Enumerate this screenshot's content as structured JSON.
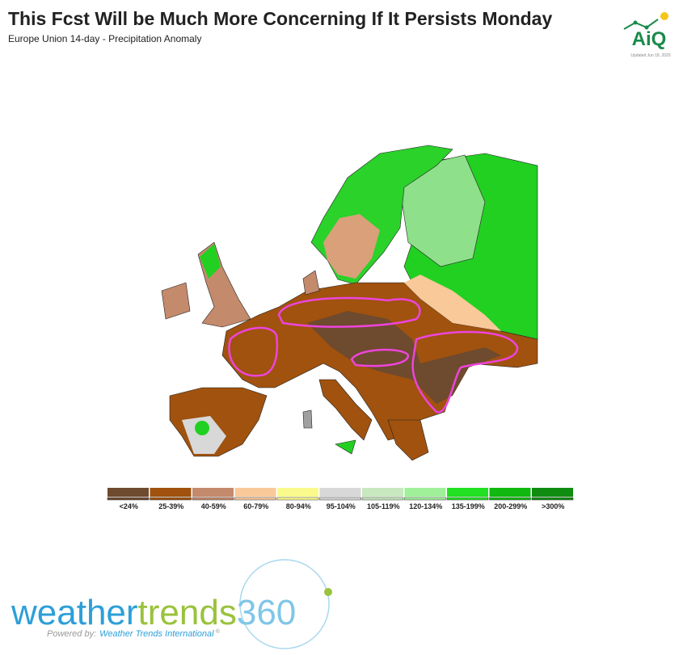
{
  "header": {
    "title": "This Fcst Will be Much More Concerning If It Persists Monday",
    "subtitle": "Europe Union 14-day - Precipitation Anomaly"
  },
  "logo": {
    "text": "AiQ",
    "updated": "Updated Jun 18, 2025"
  },
  "legend": {
    "items": [
      {
        "label": "<24%",
        "color": "#6e4a2e"
      },
      {
        "label": "25-39%",
        "color": "#a0520e"
      },
      {
        "label": "40-59%",
        "color": "#c48a6c"
      },
      {
        "label": "60-79%",
        "color": "#f9c99a"
      },
      {
        "label": "80-94%",
        "color": "#fafa8c"
      },
      {
        "label": "95-104%",
        "color": "#d8d8d8"
      },
      {
        "label": "105-119%",
        "color": "#c8e8c0"
      },
      {
        "label": "120-134%",
        "color": "#a0f09a"
      },
      {
        "label": "135-199%",
        "color": "#22e022"
      },
      {
        "label": "200-299%",
        "color": "#10b810"
      },
      {
        "label": ">300%",
        "color": "#108c10"
      }
    ]
  },
  "footer": {
    "brand_a": "weather",
    "brand_b": "trends",
    "brand_c": "360",
    "powered_a": "Powered by:",
    "powered_b": "Weather Trends International",
    "powered_c": "®"
  }
}
